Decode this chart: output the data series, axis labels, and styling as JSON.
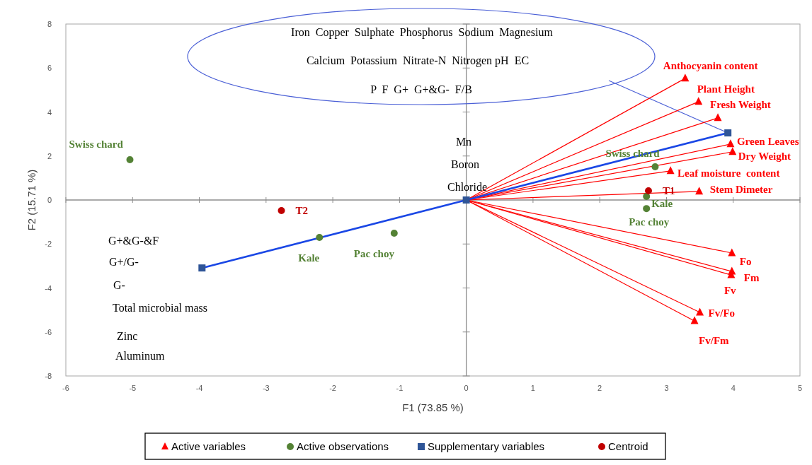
{
  "chart_data": {
    "type": "scatter",
    "xlabel": "F1 (73.85 %)",
    "ylabel": "F2 (15.71 %)",
    "xlim": [
      -6,
      5
    ],
    "xticks": [
      -6,
      -5,
      -4,
      -3,
      -2,
      -1,
      0,
      1,
      2,
      3,
      4,
      5
    ],
    "ylim": [
      -8,
      8
    ],
    "yticks": [
      -8,
      -6,
      -4,
      -2,
      0,
      2,
      4,
      6,
      8
    ],
    "legend": "bottom",
    "series": [
      {
        "type": "line",
        "color": "#1a47e5",
        "marker": "none",
        "x": [
          -3.96,
          0,
          3.92
        ],
        "values": [
          -3.09,
          0,
          3.05
        ]
      },
      {
        "name": "Active variables",
        "color": "#ff0000",
        "marker": "triangle",
        "x": [
          3.28,
          3.48,
          3.77,
          3.96,
          3.99,
          3.06,
          3.49,
          3.98,
          3.98,
          3.97,
          3.5,
          3.42
        ],
        "values": [
          5.53,
          4.47,
          3.73,
          2.54,
          2.19,
          1.32,
          0.39,
          -2.41,
          -3.25,
          -3.41,
          -5.11,
          -5.5
        ]
      },
      {
        "name": "Active observations",
        "color": "#548235",
        "marker": "circle",
        "x": [
          -5.04,
          -2.2,
          -1.08,
          2.83,
          2.7,
          2.7
        ],
        "values": [
          1.83,
          -1.7,
          -1.51,
          1.51,
          0.16,
          -0.39
        ]
      },
      {
        "name": "Supplementary variables",
        "color": "#2f5597",
        "marker": "square",
        "x": [
          -3.96,
          0,
          3.92
        ],
        "values": [
          -3.09,
          0,
          3.05
        ]
      },
      {
        "name": "Centroid",
        "color": "#c00000",
        "marker": "circle",
        "x": [
          2.73,
          -2.77
        ],
        "values": [
          0.42,
          -0.48
        ]
      }
    ],
    "annotations": [
      {
        "text": "Anthocyanin content",
        "x": 3.28,
        "y": 5.53
      },
      {
        "text": "Plant Height",
        "x": 3.48,
        "y": 4.47
      },
      {
        "text": "Fresh Weight",
        "x": 3.77,
        "y": 3.73
      },
      {
        "text": "Green Leaves",
        "x": 3.96,
        "y": 2.54
      },
      {
        "text": "Dry Weight",
        "x": 3.99,
        "y": 2.19
      },
      {
        "text": "Leaf moisture  content",
        "x": 3.06,
        "y": 1.32
      },
      {
        "text": "Stem Dimeter",
        "x": 3.49,
        "y": 0.39
      },
      {
        "text": "Fo",
        "x": 3.98,
        "y": -2.41
      },
      {
        "text": "Fm",
        "x": 3.98,
        "y": -3.25
      },
      {
        "text": "Fv",
        "x": 3.97,
        "y": -3.41
      },
      {
        "text": "Fv/Fo",
        "x": 3.5,
        "y": -5.11
      },
      {
        "text": "Fv/Fm",
        "x": 3.42,
        "y": -5.5
      },
      {
        "text": "Swiss chard",
        "x": -5.04,
        "y": 1.83
      },
      {
        "text": "Kale",
        "x": -2.2,
        "y": -1.7
      },
      {
        "text": "Pac choy",
        "x": -1.08,
        "y": -1.51
      },
      {
        "text": "Swiss chard",
        "x": 2.83,
        "y": 1.51
      },
      {
        "text": "Kale",
        "x": 2.7,
        "y": 0.16
      },
      {
        "text": "Pac choy",
        "x": 2.7,
        "y": -0.39
      },
      {
        "text": "T1",
        "x": 2.73,
        "y": 0.42
      },
      {
        "text": "T2",
        "x": -2.77,
        "y": -0.48
      },
      "Iron  Copper  Sulphate  Phosphorus  Sodium  Magnesium",
      "Calcium  Potassium  Nitrate-N  Nitrogen pH  EC",
      "P  F  G+  G+&G-  F/B",
      "Mn",
      "Boron",
      {
        "text": "Chloride",
        "x": 0,
        "y": 0
      },
      "G+&G-&F",
      "G+/G-",
      "G-",
      "Total microbial mass",
      "Zinc",
      "Aluminum"
    ]
  }
}
